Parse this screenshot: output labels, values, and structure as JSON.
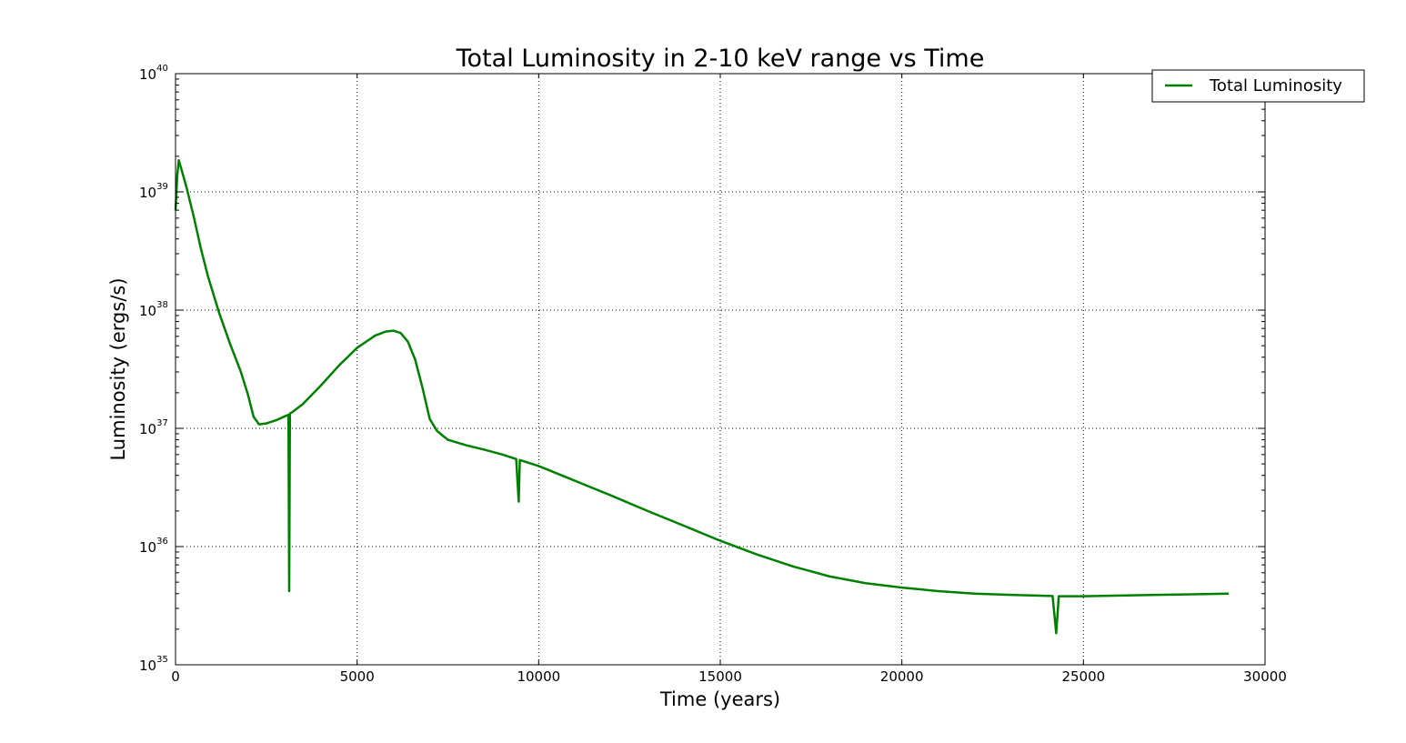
{
  "chart_data": {
    "type": "line",
    "title": "Total Luminosity in 2-10 keV range vs Time",
    "xlabel": "Time (years)",
    "ylabel": "Luminosity (ergs/s)",
    "xlim": [
      0,
      30000
    ],
    "ylim": [
      1e+35,
      1e+40
    ],
    "yscale": "log",
    "grid": true,
    "legend_position": "top-right",
    "x_ticks": [
      {
        "value": 0,
        "label": "0"
      },
      {
        "value": 5000,
        "label": "5000"
      },
      {
        "value": 10000,
        "label": "10000"
      },
      {
        "value": 15000,
        "label": "15000"
      },
      {
        "value": 20000,
        "label": "20000"
      },
      {
        "value": 25000,
        "label": "25000"
      },
      {
        "value": 30000,
        "label": "30000"
      }
    ],
    "y_ticks": [
      {
        "value": 1e+35,
        "base": "10",
        "exp": "35"
      },
      {
        "value": 1e+36,
        "base": "10",
        "exp": "36"
      },
      {
        "value": 1e+37,
        "base": "10",
        "exp": "37"
      },
      {
        "value": 1e+38,
        "base": "10",
        "exp": "38"
      },
      {
        "value": 1e+39,
        "base": "10",
        "exp": "39"
      },
      {
        "value": 1e+40,
        "base": "10",
        "exp": "40"
      }
    ],
    "series": [
      {
        "name": "Total Luminosity",
        "color": "#008000",
        "points": [
          [
            0,
            7e+38
          ],
          [
            50,
            1.4e+39
          ],
          [
            90,
            1.85e+39
          ],
          [
            150,
            1.6e+39
          ],
          [
            300,
            1.1e+39
          ],
          [
            500,
            6.2e+38
          ],
          [
            700,
            3.3e+38
          ],
          [
            900,
            1.9e+38
          ],
          [
            1200,
            9.5e+37
          ],
          [
            1500,
            5.2e+37
          ],
          [
            1800,
            3e+37
          ],
          [
            2000,
            1.9e+37
          ],
          [
            2150,
            1.25e+37
          ],
          [
            2300,
            1.08e+37
          ],
          [
            2500,
            1.1e+37
          ],
          [
            2800,
            1.18e+37
          ],
          [
            3050,
            1.28e+37
          ],
          [
            3110,
            1.3e+37
          ],
          [
            3130,
            4.2e+35
          ],
          [
            3150,
            1.34e+37
          ],
          [
            3200,
            1.36e+37
          ],
          [
            3500,
            1.6e+37
          ],
          [
            4000,
            2.3e+37
          ],
          [
            4500,
            3.4e+37
          ],
          [
            5000,
            4.8e+37
          ],
          [
            5500,
            6.1e+37
          ],
          [
            5800,
            6.6e+37
          ],
          [
            6000,
            6.7e+37
          ],
          [
            6200,
            6.4e+37
          ],
          [
            6400,
            5.4e+37
          ],
          [
            6600,
            3.8e+37
          ],
          [
            6800,
            2.2e+37
          ],
          [
            7000,
            1.2e+37
          ],
          [
            7200,
            9.5e+36
          ],
          [
            7500,
            8e+36
          ],
          [
            8000,
            7.2e+36
          ],
          [
            8500,
            6.6e+36
          ],
          [
            9000,
            6e+36
          ],
          [
            9380,
            5.5e+36
          ],
          [
            9450,
            2.4e+36
          ],
          [
            9480,
            5.4e+36
          ],
          [
            10000,
            4.8e+36
          ],
          [
            11000,
            3.6e+36
          ],
          [
            12000,
            2.7e+36
          ],
          [
            13000,
            2e+36
          ],
          [
            14000,
            1.5e+36
          ],
          [
            15000,
            1.12e+36
          ],
          [
            16000,
            8.6e+35
          ],
          [
            17000,
            6.8e+35
          ],
          [
            18000,
            5.6e+35
          ],
          [
            19000,
            4.9e+35
          ],
          [
            20000,
            4.5e+35
          ],
          [
            21000,
            4.2e+35
          ],
          [
            22000,
            4e+35
          ],
          [
            23000,
            3.9e+35
          ],
          [
            24150,
            3.82e+35
          ],
          [
            24250,
            1.85e+35
          ],
          [
            24320,
            3.8e+35
          ],
          [
            25000,
            3.8e+35
          ],
          [
            26000,
            3.85e+35
          ],
          [
            27000,
            3.9e+35
          ],
          [
            28000,
            3.95e+35
          ],
          [
            29000,
            4e+35
          ]
        ]
      }
    ]
  }
}
